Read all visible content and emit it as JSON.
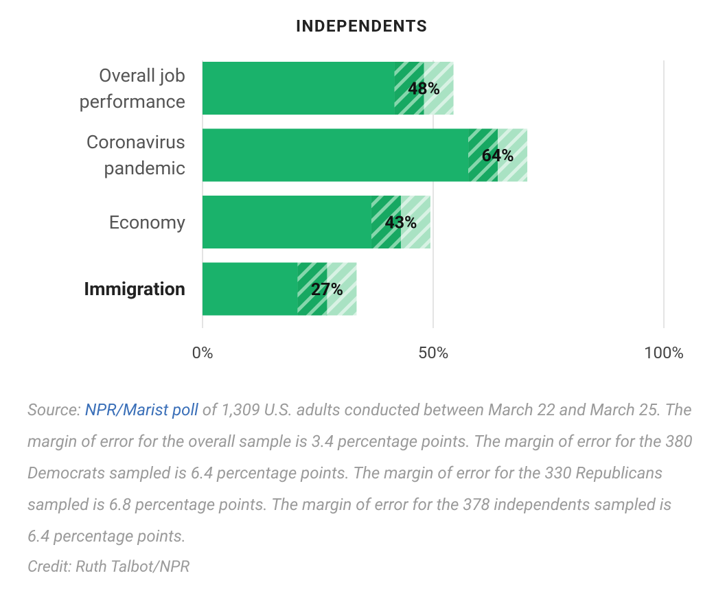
{
  "chart_data": {
    "type": "bar",
    "orientation": "horizontal",
    "title": "INDEPENDENTS",
    "categories": [
      "Overall job performance",
      "Coronavirus pandemic",
      "Economy",
      "Immigration"
    ],
    "values": [
      48,
      64,
      43,
      27
    ],
    "value_labels": [
      "48%",
      "64%",
      "43%",
      "27%"
    ],
    "errors": [
      6.4,
      6.4,
      6.4,
      6.4
    ],
    "color": "#1ab26b",
    "highlight": "Immigration",
    "xlim": [
      0,
      100
    ],
    "xticks": [
      {
        "value": 0,
        "label": "0%"
      },
      {
        "value": 50,
        "label": "50%"
      },
      {
        "value": 100,
        "label": "100%"
      }
    ],
    "grid": true
  },
  "source": {
    "label": "Source:",
    "link": "NPR/Marist poll",
    "text": "of 1,309 U.S. adults conducted between March 22 and March 25. The margin of error for the overall sample is 3.4 percentage points. The margin of error for the 380 Democrats sampled is 6.4 percentage points. The margin of error for the 330 Republicans sampled is 6.8 percentage points. The margin of error for the 378 independents sampled is 6.4 percentage points."
  },
  "credit": "Credit: Ruth Talbot/NPR"
}
